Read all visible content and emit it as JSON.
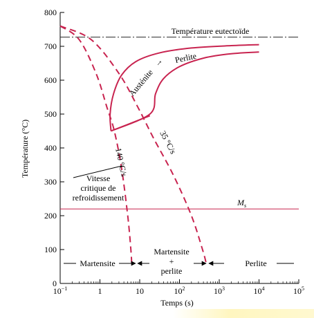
{
  "chart_data": {
    "type": "line",
    "xlabel": "Temps (s)",
    "ylabel": "Température (°C)",
    "xscale": "log",
    "xlim": [
      0.1,
      100000
    ],
    "ylim": [
      0,
      800
    ],
    "x_ticks": [
      {
        "value": 0.1,
        "base": "10",
        "exp": "−1"
      },
      {
        "value": 1,
        "base": "1",
        "exp": ""
      },
      {
        "value": 10,
        "base": "10",
        "exp": ""
      },
      {
        "value": 100,
        "base": "10",
        "exp": "2"
      },
      {
        "value": 1000,
        "base": "10",
        "exp": "3"
      },
      {
        "value": 10000,
        "base": "10",
        "exp": "4"
      },
      {
        "value": 100000,
        "base": "10",
        "exp": "5"
      }
    ],
    "y_ticks": [
      0,
      100,
      200,
      300,
      400,
      500,
      600,
      700,
      800
    ],
    "reference_lines": [
      {
        "name": "Température eutectoïde",
        "y": 727,
        "style": "dash-dot"
      },
      {
        "name": "M",
        "subscript": "s",
        "y": 220,
        "style": "solid"
      }
    ],
    "transformation_curves": {
      "label_austenite": "Austénite",
      "label_arrow": "→",
      "label_perlite": "Perlite",
      "start": [
        [
          1.9,
          450
        ],
        [
          1.8,
          500
        ],
        [
          2.2,
          560
        ],
        [
          3.5,
          615
        ],
        [
          8,
          655
        ],
        [
          30,
          680
        ],
        [
          200,
          695
        ],
        [
          2000,
          702
        ],
        [
          10000,
          705
        ]
      ],
      "finish": [
        [
          1.9,
          450
        ],
        [
          18,
          500
        ],
        [
          25,
          560
        ],
        [
          40,
          605
        ],
        [
          100,
          640
        ],
        [
          400,
          665
        ],
        [
          2000,
          678
        ],
        [
          10000,
          683
        ]
      ],
      "nose_line": [
        [
          1.9,
          450
        ],
        [
          18,
          495
        ]
      ]
    },
    "cooling_curves": [
      {
        "name": "140 °C/s",
        "points": [
          [
            0.1,
            760
          ],
          [
            0.3,
            720
          ],
          [
            0.8,
            620
          ],
          [
            1.5,
            520
          ],
          [
            2.3,
            450
          ],
          [
            3.5,
            340
          ],
          [
            5,
            200
          ],
          [
            6,
            100
          ],
          [
            6.3,
            55
          ]
        ]
      },
      {
        "name": "35 °C/s",
        "points": [
          [
            0.1,
            760
          ],
          [
            0.6,
            720
          ],
          [
            3,
            620
          ],
          [
            9,
            520
          ],
          [
            22,
            430
          ],
          [
            70,
            320
          ],
          [
            200,
            200
          ],
          [
            380,
            100
          ],
          [
            480,
            55
          ]
        ]
      }
    ],
    "annotations": {
      "vitesse": [
        "Vitesse",
        "critique de",
        "refroidissement"
      ],
      "martensite": "Martensite",
      "mixed": [
        "Martensite",
        "+",
        "perlite"
      ],
      "perlite": "Perlite"
    }
  }
}
